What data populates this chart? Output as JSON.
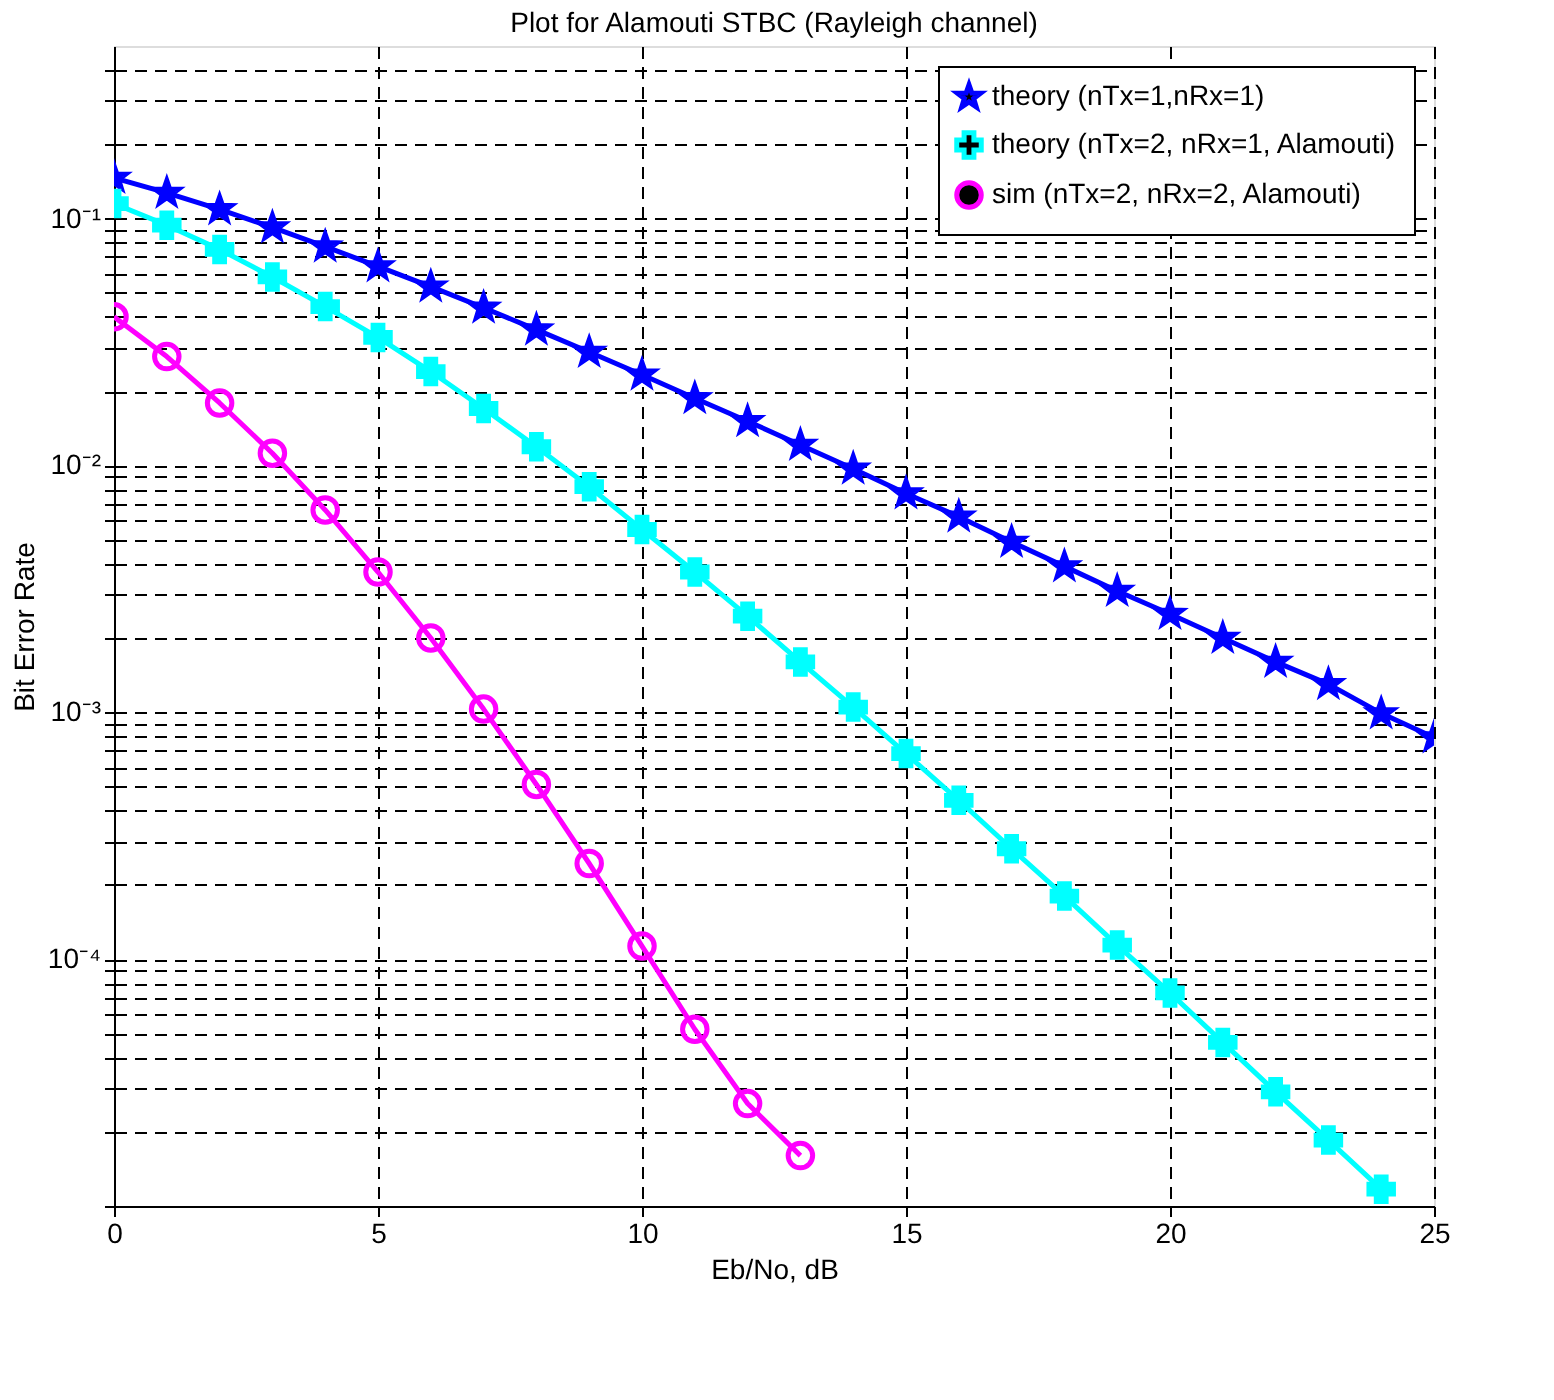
{
  "chart_data": {
    "type": "line",
    "title": "Plot for Alamouti STBC (Rayleigh channel)",
    "xlabel": "Eb/No, dB",
    "ylabel": "Bit Error Rate",
    "x": [
      0,
      1,
      2,
      3,
      4,
      5,
      6,
      7,
      8,
      9,
      10,
      11,
      12,
      13,
      14,
      15,
      16,
      17,
      18,
      19,
      20,
      21,
      22,
      23,
      24,
      25
    ],
    "series": [
      {
        "name": "theory (nTx=1,nRx=1)",
        "color": "#0000ff",
        "marker": "star",
        "values": [
          0.146,
          0.127,
          0.109,
          0.092,
          0.077,
          0.064,
          0.053,
          0.0435,
          0.0355,
          0.0288,
          0.0233,
          0.0187,
          0.0151,
          0.0121,
          0.0097,
          0.0077,
          0.0062,
          0.0049,
          0.0039,
          0.0031,
          0.0025,
          0.002,
          0.0016,
          0.0013,
          0.00099,
          0.00079
        ]
      },
      {
        "name": "theory (nTx=2, nRx=1, Alamouti)",
        "color": "#00ffff",
        "marker": "cross",
        "values": [
          0.115,
          0.094,
          0.075,
          0.058,
          0.044,
          0.033,
          0.024,
          0.017,
          0.0119,
          0.0082,
          0.0055,
          0.0037,
          0.00245,
          0.0016,
          0.00105,
          0.00068,
          0.00044,
          0.00028,
          0.00018,
          0.000114,
          7.3e-05,
          4.6e-05,
          2.9e-05,
          1.85e-05,
          1.17e-05,
          null
        ]
      },
      {
        "name": "sim (nTx=2, nRx=2, Alamouti)",
        "color": "#ff00ff",
        "marker": "circle",
        "values": [
          0.04,
          0.0276,
          0.0179,
          0.0112,
          0.0066,
          0.0037,
          0.002,
          0.00103,
          0.00051,
          0.000244,
          0.000113,
          5.2e-05,
          2.6e-05,
          1.6e-05,
          null,
          null,
          null,
          null,
          null,
          null,
          null,
          null,
          null,
          null,
          null,
          null
        ]
      }
    ],
    "log": "y",
    "xlim": [
      0,
      25
    ],
    "xticks": [
      0,
      5,
      10,
      15,
      20,
      25
    ],
    "ylim": [
      1e-05,
      0.5
    ],
    "yticks": [
      {
        "value": 1e-05,
        "label": null
      },
      {
        "value": 2e-05,
        "label": null
      },
      {
        "value": 3e-05,
        "label": null
      },
      {
        "value": 4e-05,
        "label": null
      },
      {
        "value": 5e-05,
        "label": null
      },
      {
        "value": 6e-05,
        "label": null
      },
      {
        "value": 7e-05,
        "label": null
      },
      {
        "value": 8e-05,
        "label": null
      },
      {
        "value": 9e-05,
        "label": null
      },
      {
        "value": 0.0001,
        "label": "10⁻⁴"
      },
      {
        "value": 0.0002,
        "label": null
      },
      {
        "value": 0.0003,
        "label": null
      },
      {
        "value": 0.0004,
        "label": null
      },
      {
        "value": 0.0005,
        "label": null
      },
      {
        "value": 0.0006,
        "label": null
      },
      {
        "value": 0.0007,
        "label": null
      },
      {
        "value": 0.0008,
        "label": null
      },
      {
        "value": 0.0009,
        "label": null
      },
      {
        "value": 0.001,
        "label": "10⁻³"
      },
      {
        "value": 0.002,
        "label": null
      },
      {
        "value": 0.003,
        "label": null
      },
      {
        "value": 0.004,
        "label": null
      },
      {
        "value": 0.005,
        "label": null
      },
      {
        "value": 0.006,
        "label": null
      },
      {
        "value": 0.007,
        "label": null
      },
      {
        "value": 0.008,
        "label": null
      },
      {
        "value": 0.009,
        "label": null
      },
      {
        "value": 0.01,
        "label": "10⁻²"
      },
      {
        "value": 0.02,
        "label": null
      },
      {
        "value": 0.03,
        "label": null
      },
      {
        "value": 0.04,
        "label": null
      },
      {
        "value": 0.05,
        "label": null
      },
      {
        "value": 0.06,
        "label": null
      },
      {
        "value": 0.07,
        "label": null
      },
      {
        "value": 0.08,
        "label": null
      },
      {
        "value": 0.09,
        "label": null
      },
      {
        "value": 0.1,
        "label": "10⁻¹"
      },
      {
        "value": 0.2,
        "label": null
      },
      {
        "value": 0.3,
        "label": null
      },
      {
        "value": 0.4,
        "label": null
      }
    ],
    "grid": true,
    "legend": "top right",
    "line_style": "solid"
  }
}
